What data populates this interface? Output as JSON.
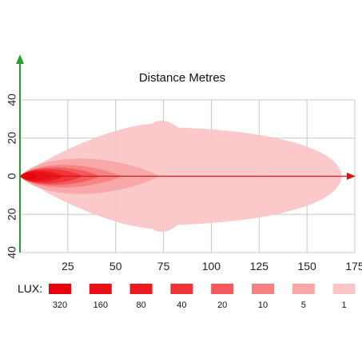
{
  "chart_data": {
    "type": "area",
    "title": "Distance Metres",
    "xlabel": "",
    "ylabel": "",
    "x_ticks": [
      "25",
      "50",
      "75",
      "100",
      "125",
      "150",
      "175"
    ],
    "x_tick_values": [
      25,
      50,
      75,
      100,
      125,
      150,
      175
    ],
    "y_ticks_left": [
      "40",
      "20",
      "0",
      "20",
      "40"
    ],
    "y_tick_values": [
      40,
      20,
      0,
      -20,
      -40
    ],
    "xlim": [
      0,
      175
    ],
    "ylim": [
      -40,
      40
    ],
    "grid": true,
    "legend": {
      "label": "LUX:",
      "placement": "bottom",
      "entries": [
        {
          "name": "320",
          "color": "#e8000b"
        },
        {
          "name": "160",
          "color": "#ea1015"
        },
        {
          "name": "80",
          "color": "#ec1a1e"
        },
        {
          "name": "40",
          "color": "#ef3438"
        },
        {
          "name": "20",
          "color": "#f25a5d"
        },
        {
          "name": "10",
          "color": "#f58183"
        },
        {
          "name": "5",
          "color": "#f8a7a8"
        },
        {
          "name": "1",
          "color": "#fbc6c6"
        }
      ]
    },
    "series": [
      {
        "name": "1",
        "reach": 168,
        "half_width": 25,
        "color": "#fbc6c6"
      },
      {
        "name": "5",
        "reach": 73,
        "half_width": 11,
        "color": "#f8a7a8"
      },
      {
        "name": "10",
        "reach": 53,
        "half_width": 7,
        "color": "#f58183"
      },
      {
        "name": "20",
        "reach": 42,
        "half_width": 5.5,
        "color": "#f25a5d"
      },
      {
        "name": "40",
        "reach": 33,
        "half_width": 4.5,
        "color": "#ef3438"
      },
      {
        "name": "80",
        "reach": 23,
        "half_width": 3.5,
        "color": "#ec1a1e"
      },
      {
        "name": "160",
        "reach": 17,
        "half_width": 2.8,
        "color": "#ea1015"
      },
      {
        "name": "320",
        "reach": 10,
        "half_width": 2,
        "color": "#e8000b"
      }
    ],
    "axis_color": "#2e9a2e",
    "beam_axis_color": "#d01818"
  }
}
